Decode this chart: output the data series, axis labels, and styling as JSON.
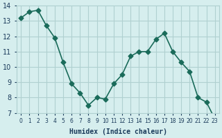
{
  "x": [
    0,
    1,
    2,
    3,
    4,
    5,
    6,
    7,
    8,
    9,
    10,
    11,
    12,
    13,
    14,
    15,
    16,
    17,
    18,
    19,
    20,
    21,
    22,
    23
  ],
  "y": [
    13.2,
    13.6,
    13.7,
    12.7,
    11.9,
    10.3,
    8.9,
    8.3,
    7.5,
    8.0,
    7.9,
    8.9,
    9.5,
    10.7,
    11.0,
    11.0,
    11.8,
    12.2,
    11.0,
    10.3,
    9.7,
    8.0,
    7.7,
    6.6
  ],
  "line_color": "#1a6b5a",
  "marker_color": "#1a6b5a",
  "bg_color": "#d6eeee",
  "grid_color": "#b0d0d0",
  "xlabel": "Humidex (Indice chaleur)",
  "ylabel": "",
  "title": "",
  "xlim": [
    -0.5,
    23.5
  ],
  "ylim": [
    7,
    14
  ],
  "yticks": [
    7,
    8,
    9,
    10,
    11,
    12,
    13,
    14
  ],
  "xtick_labels": [
    "0",
    "1",
    "2",
    "3",
    "4",
    "5",
    "6",
    "7",
    "8",
    "9",
    "10",
    "11",
    "12",
    "13",
    "14",
    "15",
    "16",
    "17",
    "18",
    "19",
    "20",
    "21",
    "22",
    "23"
  ],
  "font_color": "#1a3a5a"
}
